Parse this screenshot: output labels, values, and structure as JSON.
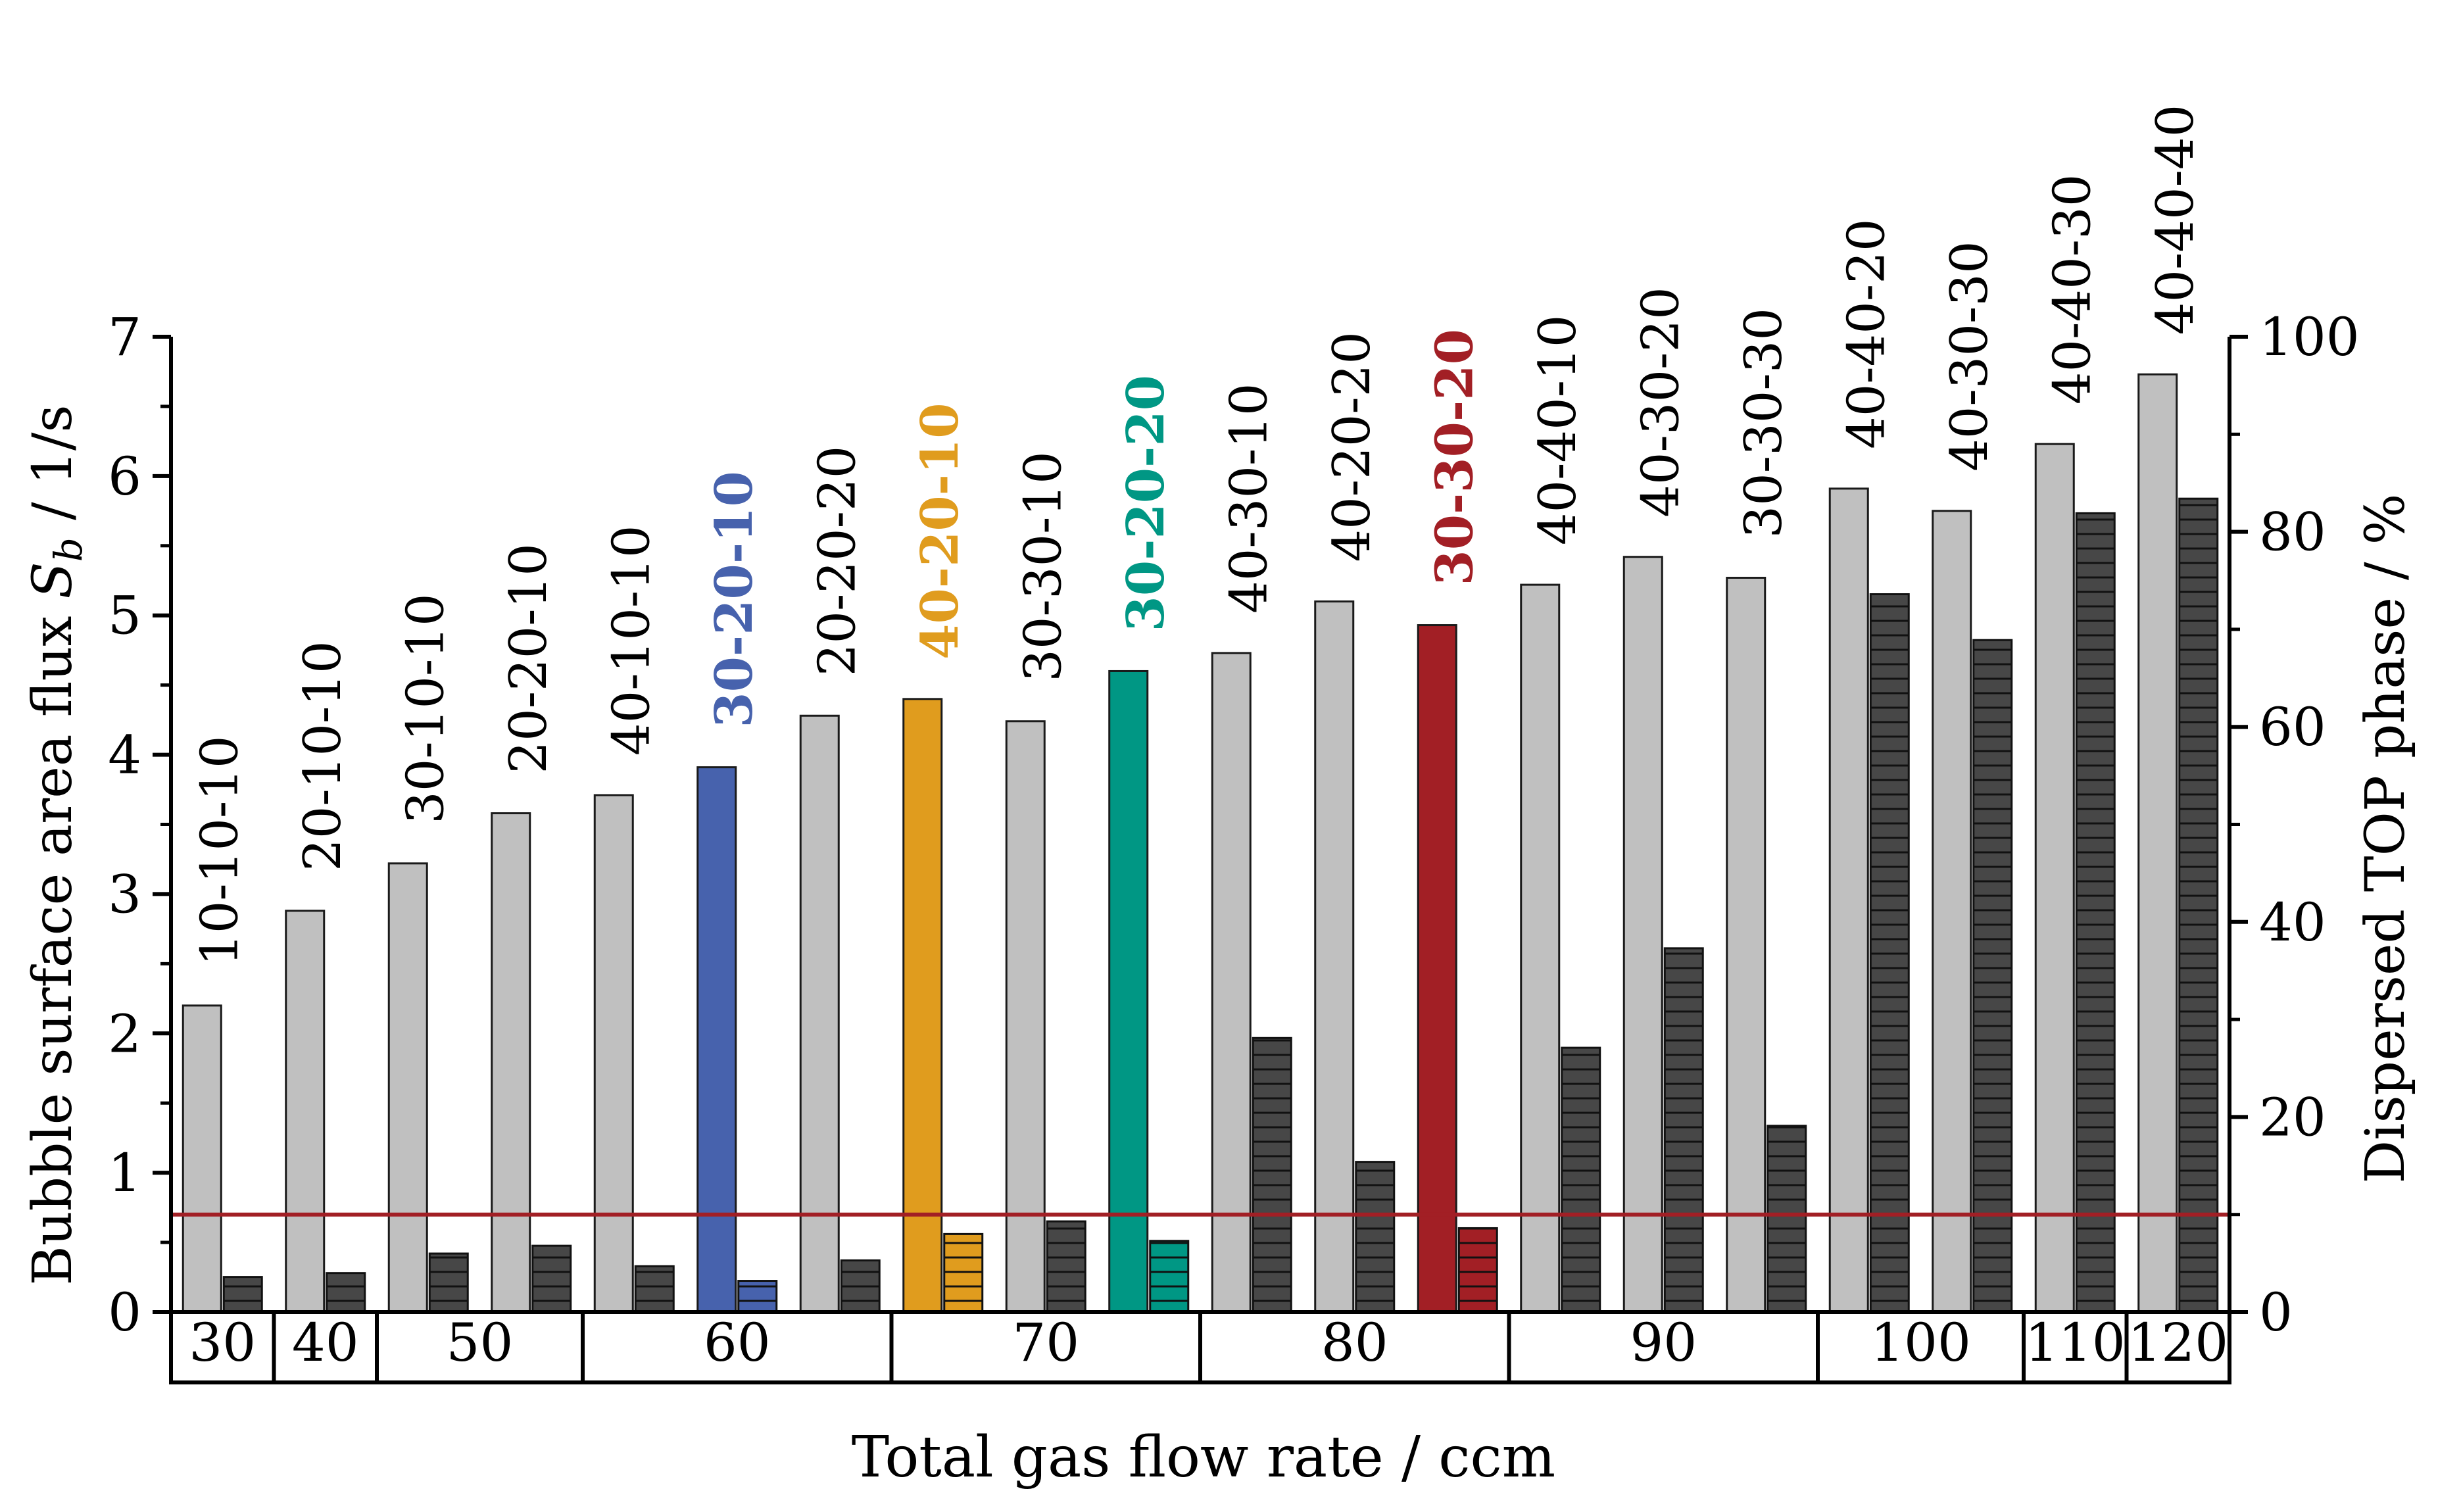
{
  "chart_data": {
    "type": "bar",
    "title": "",
    "xlabel": "Total gas flow rate / ccm",
    "ylabel_left_prefix": "Bubble surface area flux ",
    "ylabel_left_symbol": "S",
    "ylabel_left_sub": "b",
    "ylabel_left_suffix": " / 1/s",
    "ylabel_right": "Dispersed TOP phase / %",
    "ylim_left": [
      0,
      7
    ],
    "ylim_right": [
      0,
      100
    ],
    "left_ticks": [
      "0",
      "1",
      "2",
      "3",
      "4",
      "5",
      "6",
      "7"
    ],
    "right_ticks": [
      "0",
      "20",
      "40",
      "60",
      "80",
      "100"
    ],
    "threshold_line": {
      "value_left_axis": 0.7,
      "color": "#a21f25"
    },
    "categories": [
      "10-10-10",
      "20-10-10",
      "30-10-10",
      "20-20-10",
      "40-10-10",
      "30-20-10",
      "20-20-20",
      "40-20-10",
      "30-30-10",
      "30-20-20",
      "40-30-10",
      "40-20-20",
      "30-30-20",
      "40-40-10",
      "40-30-20",
      "30-30-30",
      "40-40-20",
      "40-30-30",
      "40-40-30",
      "40-40-40"
    ],
    "highlight": [
      {
        "index": 5,
        "color": "#4762ad"
      },
      {
        "index": 7,
        "color": "#e09c1e"
      },
      {
        "index": 9,
        "color": "#009784"
      },
      {
        "index": 12,
        "color": "#a21f25"
      }
    ],
    "series": [
      {
        "axis": "left",
        "color": "#c0c0c0",
        "values": [
          2.2,
          2.88,
          3.22,
          3.58,
          3.71,
          3.91,
          4.28,
          4.4,
          4.24,
          4.6,
          4.73,
          5.1,
          4.93,
          5.22,
          5.42,
          5.27,
          5.91,
          5.75,
          6.23,
          6.73
        ]
      },
      {
        "axis": "right",
        "color": "#474747",
        "pattern": "horizontal-lines",
        "values": [
          3.6,
          4.0,
          6.0,
          6.8,
          4.7,
          3.2,
          5.3,
          8.0,
          9.3,
          7.3,
          28.1,
          15.4,
          8.6,
          27.1,
          37.3,
          19.1,
          73.6,
          68.9,
          81.9,
          83.4
        ]
      }
    ],
    "flow_groups": [
      {
        "label": "30",
        "count": 1
      },
      {
        "label": "40",
        "count": 1
      },
      {
        "label": "50",
        "count": 2
      },
      {
        "label": "60",
        "count": 3
      },
      {
        "label": "70",
        "count": 3
      },
      {
        "label": "80",
        "count": 3
      },
      {
        "label": "90",
        "count": 3
      },
      {
        "label": "100",
        "count": 2
      },
      {
        "label": "110",
        "count": 1
      },
      {
        "label": "120",
        "count": 1
      }
    ],
    "grid": false,
    "legend": "none"
  }
}
